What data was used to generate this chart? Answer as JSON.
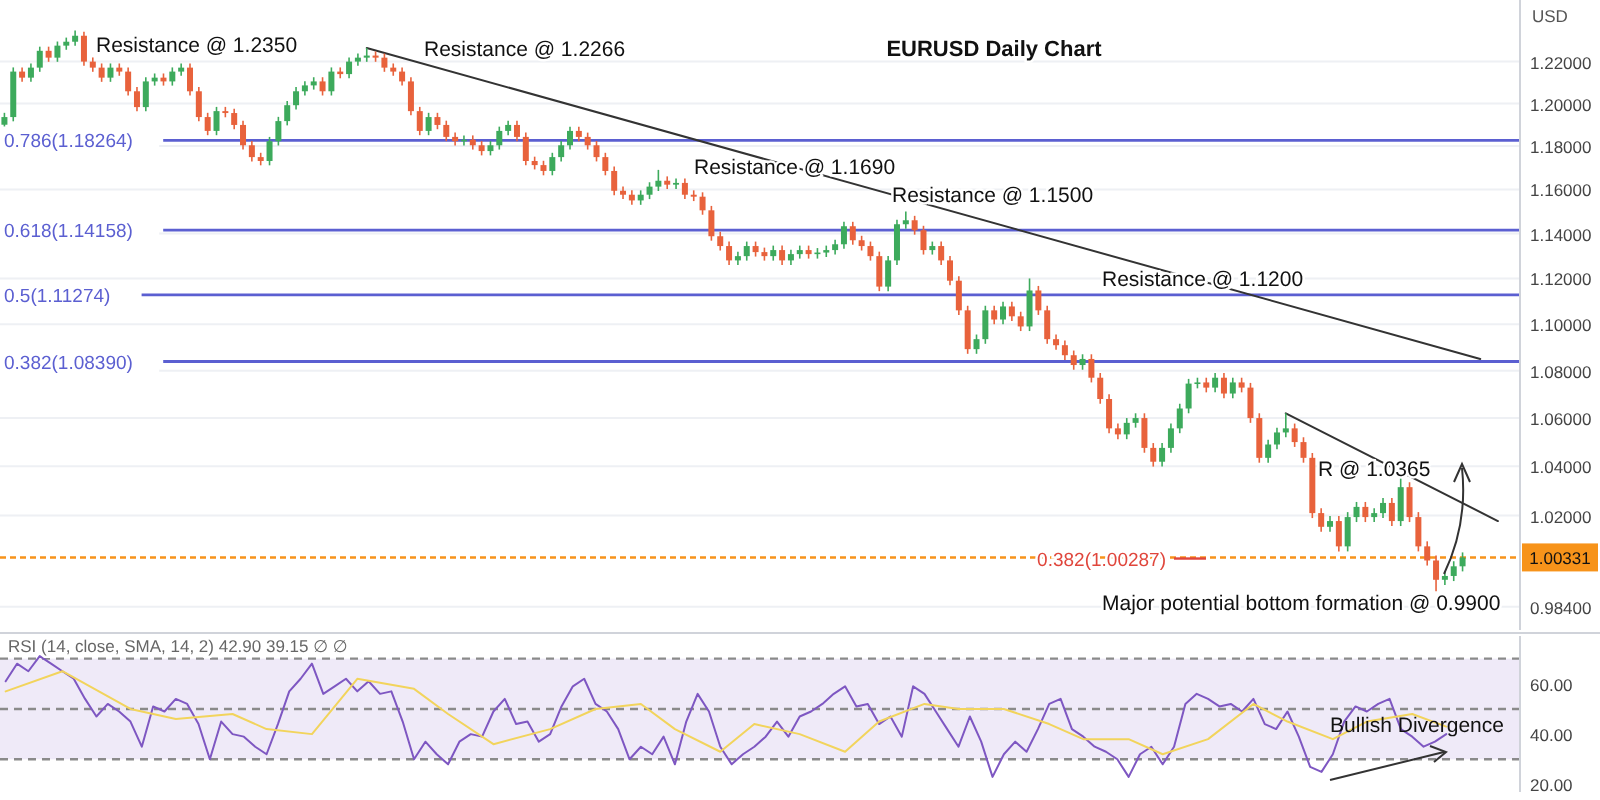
{
  "chart_data": [
    {
      "type": "candlestick",
      "title": "EURUSD Daily Chart",
      "ylabel": "USD",
      "log": "y",
      "grid": "y",
      "tick_labels": "y",
      "categories": [
        null,
        null,
        null,
        null,
        null,
        null,
        null,
        null,
        null,
        null,
        null,
        null,
        null,
        null,
        null,
        null,
        null,
        null,
        null,
        null,
        null,
        null,
        null,
        null,
        null,
        null,
        null,
        null,
        null,
        null,
        null,
        null,
        null,
        null,
        null,
        null,
        null,
        null,
        null,
        null,
        null,
        null,
        null,
        null,
        null,
        null,
        null,
        null,
        null,
        null,
        null,
        null,
        null,
        null,
        null,
        null,
        null,
        null,
        null,
        null,
        null,
        null,
        null,
        null,
        null,
        null,
        null,
        null,
        null,
        null,
        null,
        null,
        null,
        null,
        null,
        null,
        null,
        null,
        null,
        null,
        null,
        null,
        null,
        null,
        null,
        null,
        null,
        null,
        null,
        null,
        null,
        null,
        null,
        null,
        null,
        null,
        null,
        null,
        null,
        null,
        null,
        null,
        null,
        null,
        null,
        null,
        null,
        null,
        null,
        null,
        null,
        null,
        null,
        null,
        null,
        null,
        null,
        null,
        null,
        null,
        null,
        null,
        null,
        null,
        null,
        null,
        null,
        null,
        null,
        null,
        null,
        null,
        null,
        null,
        null,
        null,
        null,
        null,
        null,
        null,
        null,
        null,
        null,
        null,
        null,
        null,
        null,
        null,
        null,
        null,
        null,
        null,
        null,
        null,
        null,
        null,
        null,
        null,
        null,
        null,
        null,
        null,
        null,
        null,
        null,
        null,
        null,
        null,
        null,
        null,
        null,
        null
      ],
      "ohlc": [
        [
          1.19,
          1.1956,
          1.188,
          1.1936
        ],
        [
          1.1936,
          1.2172,
          1.1916,
          1.2152
        ],
        [
          1.2152,
          1.2172,
          1.2103,
          1.2123
        ],
        [
          1.2123,
          1.2191,
          1.2103,
          1.2171
        ],
        [
          1.2171,
          1.2272,
          1.2151,
          1.2252
        ],
        [
          1.2252,
          1.2272,
          1.2199,
          1.2219
        ],
        [
          1.2219,
          1.2297,
          1.2199,
          1.2277
        ],
        [
          1.2277,
          1.2316,
          1.2257,
          1.2296
        ],
        [
          1.2296,
          1.235,
          1.2276,
          1.2325
        ],
        [
          1.2325,
          1.2345,
          1.218,
          1.22
        ],
        [
          1.22,
          1.222,
          1.2151,
          1.2171
        ],
        [
          1.2171,
          1.2191,
          1.2103,
          1.2123
        ],
        [
          1.2123,
          1.2191,
          1.2103,
          1.2171
        ],
        [
          1.2171,
          1.2191,
          1.2132,
          1.2152
        ],
        [
          1.2152,
          1.2172,
          1.2038,
          1.2058
        ],
        [
          1.2058,
          1.2078,
          1.1963,
          1.1983
        ],
        [
          1.1983,
          1.2125,
          1.1963,
          1.2105
        ],
        [
          1.2105,
          1.2143,
          1.2085,
          1.2123
        ],
        [
          1.2123,
          1.2143,
          1.2085,
          1.2105
        ],
        [
          1.2105,
          1.2172,
          1.2085,
          1.2152
        ],
        [
          1.2152,
          1.2191,
          1.2132,
          1.2171
        ],
        [
          1.2171,
          1.2191,
          1.2038,
          1.2058
        ],
        [
          1.2058,
          1.2078,
          1.1916,
          1.1936
        ],
        [
          1.1936,
          1.1956,
          1.1851,
          1.1871
        ],
        [
          1.1871,
          1.1984,
          1.1851,
          1.1964
        ],
        [
          1.1964,
          1.1984,
          1.1935,
          1.1955
        ],
        [
          1.1955,
          1.1975,
          1.1879,
          1.1899
        ],
        [
          1.1899,
          1.1919,
          1.1784,
          1.1804
        ],
        [
          1.1804,
          1.1824,
          1.1729,
          1.1749
        ],
        [
          1.1749,
          1.1769,
          1.1711,
          1.1731
        ],
        [
          1.1731,
          1.1843,
          1.1711,
          1.1823
        ],
        [
          1.1823,
          1.1937,
          1.1803,
          1.1917
        ],
        [
          1.1917,
          1.2012,
          1.1897,
          1.1992
        ],
        [
          1.1992,
          1.2078,
          1.1972,
          1.2058
        ],
        [
          1.2058,
          1.2106,
          1.2038,
          1.2086
        ],
        [
          1.2086,
          1.2125,
          1.2066,
          1.2105
        ],
        [
          1.2105,
          1.2125,
          1.2038,
          1.2058
        ],
        [
          1.2058,
          1.2172,
          1.2038,
          1.2152
        ],
        [
          1.2152,
          1.2172,
          1.212,
          1.214
        ],
        [
          1.214,
          1.222,
          1.212,
          1.22
        ],
        [
          1.22,
          1.2239,
          1.218,
          1.2219
        ],
        [
          1.2219,
          1.2266,
          1.2199,
          1.2229
        ],
        [
          1.2229,
          1.2249,
          1.2199,
          1.2219
        ],
        [
          1.2219,
          1.2239,
          1.2151,
          1.2171
        ],
        [
          1.2171,
          1.2191,
          1.2132,
          1.2152
        ],
        [
          1.2152,
          1.2172,
          1.2085,
          1.2105
        ],
        [
          1.2105,
          1.2125,
          1.1944,
          1.1964
        ],
        [
          1.1964,
          1.1984,
          1.1851,
          1.1871
        ],
        [
          1.1871,
          1.1956,
          1.1851,
          1.1936
        ],
        [
          1.1936,
          1.1956,
          1.1879,
          1.1899
        ],
        [
          1.1899,
          1.1919,
          1.1823,
          1.1843
        ],
        [
          1.1843,
          1.1863,
          1.1803,
          1.1823
        ],
        [
          1.1823,
          1.185,
          1.1803,
          1.183
        ],
        [
          1.183,
          1.185,
          1.1784,
          1.1804
        ],
        [
          1.1804,
          1.1824,
          1.1757,
          1.1777
        ],
        [
          1.1777,
          1.1824,
          1.1757,
          1.1804
        ],
        [
          1.1804,
          1.1891,
          1.1784,
          1.1871
        ],
        [
          1.1871,
          1.1919,
          1.1851,
          1.1899
        ],
        [
          1.1899,
          1.1919,
          1.1823,
          1.1843
        ],
        [
          1.1843,
          1.1863,
          1.1711,
          1.1731
        ],
        [
          1.1731,
          1.1751,
          1.1692,
          1.1712
        ],
        [
          1.1712,
          1.1732,
          1.1665,
          1.1685
        ],
        [
          1.1685,
          1.1769,
          1.1665,
          1.1749
        ],
        [
          1.1749,
          1.1824,
          1.1729,
          1.1804
        ],
        [
          1.1804,
          1.1891,
          1.1784,
          1.1871
        ],
        [
          1.1871,
          1.1891,
          1.1823,
          1.1843
        ],
        [
          1.1843,
          1.1863,
          1.1784,
          1.1804
        ],
        [
          1.1804,
          1.1824,
          1.1729,
          1.1749
        ],
        [
          1.1749,
          1.1769,
          1.1665,
          1.1685
        ],
        [
          1.1685,
          1.1705,
          1.1574,
          1.1594
        ],
        [
          1.1594,
          1.1614,
          1.1556,
          1.1576
        ],
        [
          1.1576,
          1.1596,
          1.153,
          1.155
        ],
        [
          1.155,
          1.1596,
          1.153,
          1.1576
        ],
        [
          1.1576,
          1.1633,
          1.1556,
          1.1613
        ],
        [
          1.1613,
          1.169,
          1.1593,
          1.164
        ],
        [
          1.164,
          1.166,
          1.1602,
          1.1622
        ],
        [
          1.1622,
          1.165,
          1.1602,
          1.163
        ],
        [
          1.163,
          1.165,
          1.1556,
          1.1576
        ],
        [
          1.1576,
          1.1596,
          1.1547,
          1.1567
        ],
        [
          1.1567,
          1.1587,
          1.1485,
          1.1505
        ],
        [
          1.1505,
          1.1525,
          1.1368,
          1.1388
        ],
        [
          1.1388,
          1.1408,
          1.1324,
          1.1344
        ],
        [
          1.1344,
          1.1364,
          1.126,
          1.128
        ],
        [
          1.128,
          1.1319,
          1.126,
          1.1299
        ],
        [
          1.1299,
          1.1364,
          1.1279,
          1.1344
        ],
        [
          1.1344,
          1.1364,
          1.1297,
          1.1317
        ],
        [
          1.1317,
          1.1337,
          1.1279,
          1.1299
        ],
        [
          1.1299,
          1.1346,
          1.1279,
          1.1326
        ],
        [
          1.1326,
          1.1346,
          1.126,
          1.128
        ],
        [
          1.128,
          1.1328,
          1.126,
          1.1308
        ],
        [
          1.1308,
          1.1346,
          1.1288,
          1.1326
        ],
        [
          1.1326,
          1.1346,
          1.1288,
          1.1308
        ],
        [
          1.1308,
          1.1335,
          1.1288,
          1.1315
        ],
        [
          1.1315,
          1.1346,
          1.1295,
          1.1326
        ],
        [
          1.1326,
          1.1372,
          1.1306,
          1.1352
        ],
        [
          1.1352,
          1.1453,
          1.1332,
          1.1433
        ],
        [
          1.1433,
          1.1453,
          1.135,
          1.137
        ],
        [
          1.137,
          1.139,
          1.1324,
          1.1344
        ],
        [
          1.1344,
          1.1364,
          1.1279,
          1.1299
        ],
        [
          1.1299,
          1.1319,
          1.1144,
          1.1164
        ],
        [
          1.1164,
          1.13,
          1.1144,
          1.128
        ],
        [
          1.128,
          1.1462,
          1.126,
          1.1442
        ],
        [
          1.1442,
          1.15,
          1.1422,
          1.146
        ],
        [
          1.146,
          1.148,
          1.1395,
          1.1415
        ],
        [
          1.1415,
          1.1435,
          1.1306,
          1.1326
        ],
        [
          1.1326,
          1.1364,
          1.1306,
          1.1344
        ],
        [
          1.1344,
          1.1364,
          1.126,
          1.128
        ],
        [
          1.128,
          1.13,
          1.117,
          1.119
        ],
        [
          1.119,
          1.121,
          1.104,
          1.106
        ],
        [
          1.106,
          1.108,
          1.0872,
          1.0892
        ],
        [
          1.0892,
          1.0955,
          1.0872,
          1.0935
        ],
        [
          1.0935,
          1.108,
          1.0915,
          1.106
        ],
        [
          1.106,
          1.108,
          1.1,
          1.102
        ],
        [
          1.102,
          1.1097,
          1.1,
          1.1077
        ],
        [
          1.1077,
          1.1097,
          1.1014,
          1.1034
        ],
        [
          1.1034,
          1.1054,
          1.097,
          1.099
        ],
        [
          1.099,
          1.12,
          1.097,
          1.1147
        ],
        [
          1.1147,
          1.1167,
          1.104,
          1.106
        ],
        [
          1.106,
          1.108,
          1.0915,
          1.0935
        ],
        [
          1.0935,
          1.0955,
          1.0889,
          1.0909
        ],
        [
          1.0909,
          1.0929,
          1.0846,
          1.0866
        ],
        [
          1.0866,
          1.0886,
          1.0804,
          1.0824
        ],
        [
          1.0824,
          1.087,
          1.0804,
          1.085
        ],
        [
          1.085,
          1.087,
          1.075,
          1.077
        ],
        [
          1.077,
          1.079,
          1.066,
          1.068
        ],
        [
          1.068,
          1.07,
          1.0537,
          1.0557
        ],
        [
          1.0557,
          1.0577,
          1.0512,
          1.0532
        ],
        [
          1.0532,
          1.06,
          1.0512,
          1.058
        ],
        [
          1.058,
          1.062,
          1.056,
          1.06
        ],
        [
          1.06,
          1.062,
          1.0456,
          1.0476
        ],
        [
          1.0476,
          1.0496,
          1.0399,
          1.0419
        ],
        [
          1.0419,
          1.0496,
          1.0399,
          1.0476
        ],
        [
          1.0476,
          1.0577,
          1.0456,
          1.0557
        ],
        [
          1.0557,
          1.066,
          1.0537,
          1.064
        ],
        [
          1.064,
          1.0765,
          1.062,
          1.0745
        ],
        [
          1.0745,
          1.077,
          1.0725,
          1.075
        ],
        [
          1.075,
          1.077,
          1.0708,
          1.0728
        ],
        [
          1.0728,
          1.079,
          1.0708,
          1.077
        ],
        [
          1.077,
          1.079,
          1.0683,
          1.0703
        ],
        [
          1.0703,
          1.077,
          1.0683,
          1.075
        ],
        [
          1.075,
          1.077,
          1.0708,
          1.0728
        ],
        [
          1.0728,
          1.0748,
          1.058,
          1.06
        ],
        [
          1.06,
          1.062,
          1.0415,
          1.0435
        ],
        [
          1.0435,
          1.051,
          1.0415,
          1.049
        ],
        [
          1.049,
          1.056,
          1.047,
          1.054
        ],
        [
          1.054,
          1.062,
          1.052,
          1.0557
        ],
        [
          1.0557,
          1.0577,
          1.048,
          1.05
        ],
        [
          1.05,
          1.052,
          1.0415,
          1.0435
        ],
        [
          1.0435,
          1.0455,
          1.019,
          1.021
        ],
        [
          1.021,
          1.023,
          1.0135,
          1.0155
        ],
        [
          1.0155,
          1.0198,
          1.0135,
          1.0178
        ],
        [
          1.0178,
          1.0198,
          1.0057,
          1.0077
        ],
        [
          1.0077,
          1.0214,
          1.0057,
          1.0194
        ],
        [
          1.0194,
          1.0255,
          1.0174,
          1.0235
        ],
        [
          1.0235,
          1.0255,
          1.0174,
          1.0194
        ],
        [
          1.0194,
          1.023,
          1.0174,
          1.021
        ],
        [
          1.021,
          1.0271,
          1.019,
          1.0251
        ],
        [
          1.0251,
          1.0271,
          1.0158,
          1.0178
        ],
        [
          1.0178,
          1.0365,
          1.0158,
          1.0315
        ],
        [
          1.0315,
          1.0335,
          1.0174,
          1.0194
        ],
        [
          1.0194,
          1.0214,
          1.0057,
          1.0077
        ],
        [
          1.0077,
          1.0097,
          1.0001,
          1.0021
        ],
        [
          1.0021,
          1.0041,
          0.99,
          0.9945
        ],
        [
          0.9945,
          0.998,
          0.9925,
          0.996
        ],
        [
          0.996,
          1.0018,
          0.994,
          0.9998
        ],
        [
          0.9998,
          1.0053,
          0.9978,
          1.0033
        ],
        null,
        null,
        null,
        null,
        null,
        null
      ],
      "series": [
        {
          "type": "line",
          "color": "#333333",
          "values": [
            null,
            null,
            null,
            null,
            null,
            null,
            null,
            null,
            null,
            null,
            null,
            null,
            null,
            null,
            null,
            null,
            null,
            null,
            null,
            null,
            null,
            null,
            null,
            null,
            null,
            null,
            null,
            null,
            null,
            null,
            null,
            null,
            null,
            null,
            null,
            null,
            null,
            null,
            null,
            null,
            null,
            1.2266,
            null,
            null,
            null,
            null,
            null,
            null,
            null,
            null,
            null,
            null,
            null,
            null,
            null,
            null,
            null,
            null,
            null,
            null,
            null,
            null,
            null,
            null,
            null,
            null,
            null,
            null,
            null,
            null,
            null,
            null,
            null,
            null,
            null,
            null,
            null,
            null,
            null,
            null,
            null,
            null,
            null,
            null,
            null,
            null,
            null,
            null,
            null,
            null,
            null,
            null,
            null,
            null,
            null,
            null,
            null,
            null,
            null,
            null,
            null,
            null,
            null,
            null,
            null,
            null,
            null,
            null,
            null,
            null,
            null,
            null,
            null,
            null,
            null,
            null,
            null,
            null,
            null,
            null,
            null,
            null,
            null,
            null,
            null,
            null,
            null,
            null,
            null,
            null,
            null,
            null,
            null,
            null,
            null,
            null,
            null,
            null,
            null,
            null,
            null,
            null,
            null,
            null,
            null,
            null,
            null,
            null,
            null,
            null,
            null,
            null,
            null,
            null,
            null,
            null,
            null,
            null,
            null,
            null,
            null,
            null,
            null,
            null,
            null,
            null,
            null,
            1.085,
            null,
            null,
            null,
            null
          ]
        },
        {
          "type": "line",
          "color": "#333333",
          "values": [
            null,
            null,
            null,
            null,
            null,
            null,
            null,
            null,
            null,
            null,
            null,
            null,
            null,
            null,
            null,
            null,
            null,
            null,
            null,
            null,
            null,
            null,
            null,
            null,
            null,
            null,
            null,
            null,
            null,
            null,
            null,
            null,
            null,
            null,
            null,
            null,
            null,
            null,
            null,
            null,
            null,
            null,
            null,
            null,
            null,
            null,
            null,
            null,
            null,
            null,
            null,
            null,
            null,
            null,
            null,
            null,
            null,
            null,
            null,
            null,
            null,
            null,
            null,
            null,
            null,
            null,
            null,
            null,
            null,
            null,
            null,
            null,
            null,
            null,
            null,
            null,
            null,
            null,
            null,
            null,
            null,
            null,
            null,
            null,
            null,
            null,
            null,
            null,
            null,
            null,
            null,
            null,
            null,
            null,
            null,
            null,
            null,
            null,
            null,
            null,
            null,
            null,
            null,
            null,
            null,
            null,
            null,
            null,
            null,
            null,
            null,
            null,
            null,
            null,
            null,
            null,
            null,
            null,
            null,
            null,
            null,
            null,
            null,
            null,
            null,
            null,
            null,
            null,
            null,
            null,
            null,
            null,
            null,
            null,
            null,
            null,
            null,
            null,
            null,
            null,
            null,
            null,
            null,
            null,
            null,
            1.062,
            null,
            null,
            null,
            null,
            null,
            null,
            null,
            null,
            null,
            null,
            null,
            null,
            null,
            null,
            null,
            null,
            null,
            null,
            null,
            null,
            null,
            null,
            null,
            1.0178,
            null,
            null
          ]
        }
      ],
      "ylim": [
        0.975,
        1.25
      ],
      "yticks": [
        {
          "value": 0.984,
          "label": "0.98400"
        },
        {
          "value": 1.02,
          "label": "1.02000"
        },
        {
          "value": 1.04,
          "label": "1.04000"
        },
        {
          "value": 1.06,
          "label": "1.06000"
        },
        {
          "value": 1.08,
          "label": "1.08000"
        },
        {
          "value": 1.1,
          "label": "1.10000"
        },
        {
          "value": 1.12,
          "label": "1.12000"
        },
        {
          "value": 1.14,
          "label": "1.14000"
        },
        {
          "value": 1.16,
          "label": "1.16000"
        },
        {
          "value": 1.18,
          "label": "1.18000"
        },
        {
          "value": 1.2,
          "label": "1.20000"
        },
        {
          "value": 1.22,
          "label": "1.22000"
        }
      ],
      "ref_lines": [
        {
          "axis": "y",
          "value": 1.18264,
          "label": "0.786(1.18264)",
          "color": "#5b5fd1"
        },
        {
          "axis": "y",
          "value": 1.14158,
          "label": "0.618(1.14158)",
          "color": "#5b5fd1"
        },
        {
          "axis": "y",
          "value": 1.11274,
          "label": "0.5(1.11274)",
          "color": "#5b5fd1"
        },
        {
          "axis": "y",
          "value": 1.0839,
          "label": "0.382(1.08390)",
          "color": "#5b5fd1"
        },
        {
          "axis": "y",
          "value": 1.00331,
          "label": "1.00331",
          "color": "#f7931a",
          "line_style": "dotted"
        }
      ],
      "annotations": [
        "Resistance @ 1.2350",
        "Resistance @ 1.2266",
        "Resistance @ 1.1690",
        "Resistance @ 1.1500",
        "Resistance @ 1.1200",
        "R @ 1.0365",
        "Major potential bottom formation @ 0.9900",
        {
          "text": "0.382(1.00287)",
          "y": 1.00287
        }
      ]
    },
    {
      "type": "line",
      "title": "RSI (14, close, SMA, 14, 2) 42.90 39.15 ∅ ∅",
      "tick_labels": "y",
      "categories": [
        null,
        null,
        null,
        null,
        null,
        null,
        null,
        null,
        null,
        null,
        null,
        null,
        null,
        null,
        null,
        null,
        null,
        null,
        null,
        null,
        null,
        null,
        null,
        null,
        null,
        null,
        null,
        null,
        null,
        null,
        null,
        null,
        null,
        null,
        null,
        null,
        null,
        null,
        null,
        null,
        null,
        null,
        null,
        null,
        null,
        null,
        null,
        null,
        null,
        null,
        null,
        null,
        null,
        null,
        null,
        null,
        null,
        null,
        null,
        null,
        null,
        null,
        null,
        null,
        null,
        null,
        null,
        null,
        null,
        null,
        null,
        null,
        null,
        null,
        null,
        null,
        null,
        null,
        null,
        null,
        null,
        null,
        null,
        null,
        null,
        null,
        null,
        null,
        null,
        null,
        null,
        null,
        null,
        null,
        null,
        null,
        null,
        null,
        null,
        null,
        null,
        null,
        null,
        null,
        null,
        null,
        null,
        null,
        null,
        null,
        null,
        null,
        null,
        null,
        null,
        null,
        null,
        null,
        null,
        null,
        null,
        null,
        null,
        null,
        null,
        null,
        null,
        null,
        null,
        null,
        null,
        null,
        null,
        null
      ],
      "series": [
        {
          "color": "#7e57c2",
          "values": [
            61,
            68,
            65,
            71,
            68,
            65,
            62,
            54,
            47,
            52,
            49,
            45,
            35,
            51,
            49,
            54,
            52,
            44,
            30,
            45,
            40,
            39,
            35,
            32,
            44,
            57,
            62,
            68,
            56,
            59,
            62,
            57,
            61,
            56,
            57,
            45,
            30,
            37,
            32,
            28,
            37,
            40,
            39,
            49,
            54,
            44,
            45,
            37,
            40,
            51,
            59,
            62,
            52,
            49,
            42,
            30,
            35,
            32,
            39,
            28,
            45,
            56,
            49,
            35,
            28,
            32,
            35,
            39,
            45,
            39,
            47,
            49,
            52,
            56,
            59,
            51,
            52,
            44,
            47,
            39,
            59,
            56,
            49,
            42,
            35,
            47,
            37,
            23,
            32,
            37,
            33,
            42,
            52,
            54,
            42,
            39,
            35,
            33,
            30,
            23,
            32,
            35,
            28,
            35,
            52,
            56,
            54,
            51,
            52,
            49,
            54,
            44,
            42,
            49,
            39,
            27,
            25,
            32,
            45,
            51,
            49,
            52,
            54,
            42,
            39,
            35,
            37,
            40,
            null,
            null,
            null,
            null,
            null,
            null
          ]
        },
        {
          "color": "#f2d45c",
          "values": [
            57,
            null,
            null,
            null,
            null,
            65,
            null,
            null,
            null,
            null,
            null,
            50,
            null,
            null,
            null,
            46,
            null,
            null,
            null,
            null,
            48,
            null,
            null,
            42,
            null,
            null,
            null,
            40,
            null,
            null,
            null,
            62,
            null,
            null,
            null,
            null,
            58,
            null,
            null,
            48,
            null,
            null,
            null,
            36,
            null,
            null,
            null,
            null,
            42,
            null,
            null,
            null,
            50,
            null,
            null,
            null,
            52,
            null,
            null,
            42,
            null,
            null,
            null,
            33,
            null,
            null,
            44,
            null,
            null,
            null,
            40,
            null,
            null,
            null,
            33,
            null,
            null,
            45,
            null,
            null,
            null,
            52,
            null,
            null,
            50,
            null,
            null,
            null,
            50,
            null,
            null,
            null,
            44,
            null,
            null,
            38,
            null,
            null,
            null,
            38,
            null,
            null,
            32,
            null,
            null,
            null,
            38,
            null,
            null,
            null,
            52,
            null,
            null,
            45,
            null,
            null,
            null,
            38,
            null,
            null,
            45,
            null,
            null,
            null,
            48,
            null,
            null,
            43,
            null,
            null,
            null,
            null,
            null,
            null
          ]
        }
      ],
      "ylim": [
        17,
        79
      ],
      "yticks": [
        {
          "value": 20,
          "label": "20.00"
        },
        {
          "value": 40,
          "label": "40.00"
        },
        {
          "value": 60,
          "label": "60.00"
        }
      ],
      "bands": [
        {
          "axis": "y",
          "from": 30,
          "to": 70,
          "color": "#efeaf8"
        }
      ],
      "ref_lines": [
        {
          "axis": "y",
          "value": 70,
          "color": "#8a8a8a",
          "line_style": "dashed"
        },
        {
          "axis": "y",
          "value": 50,
          "color": "#8a8a8a",
          "line_style": "dashed"
        },
        {
          "axis": "y",
          "value": 30,
          "color": "#8a8a8a",
          "line_style": "dashed"
        }
      ],
      "annotations": [
        "Bullish Divergence"
      ]
    }
  ]
}
